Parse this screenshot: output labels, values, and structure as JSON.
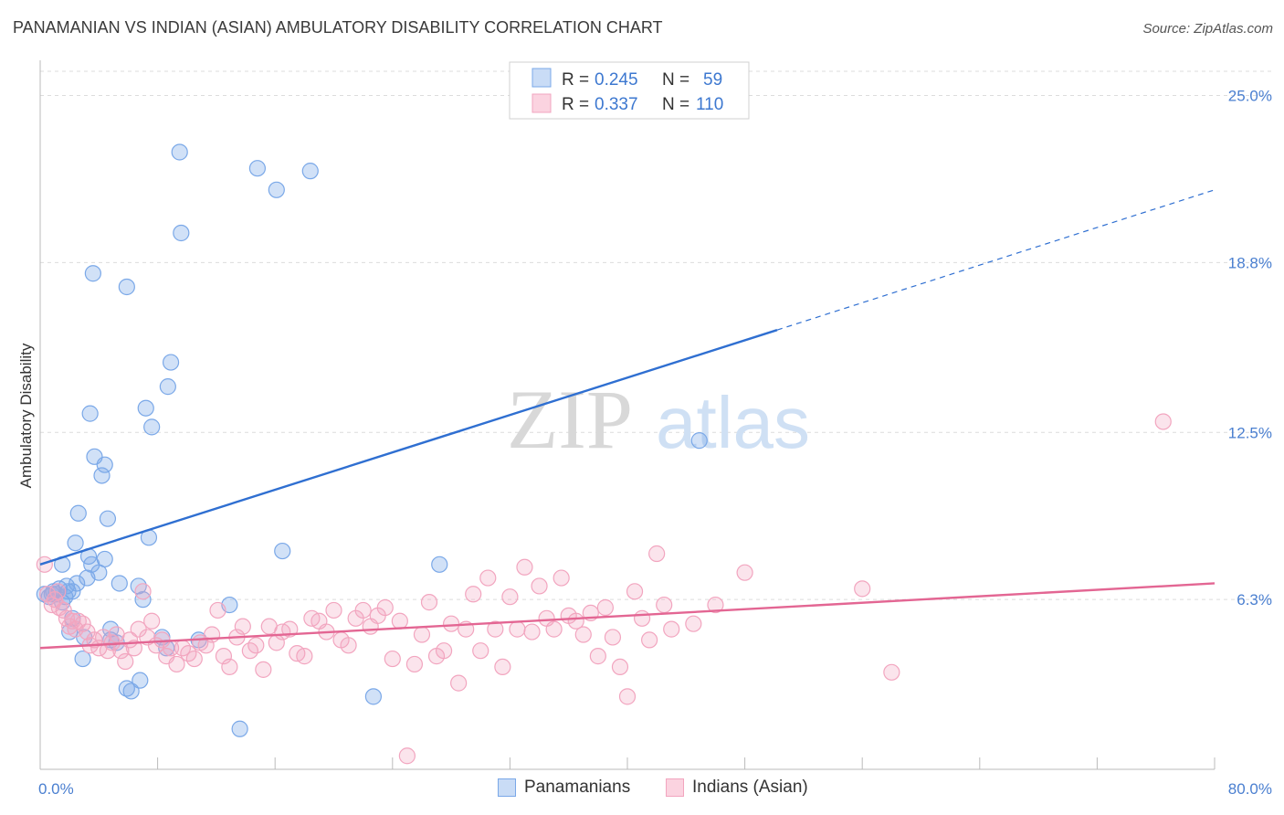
{
  "header": {
    "title": "PANAMANIAN VS INDIAN (ASIAN) AMBULATORY DISABILITY CORRELATION CHART",
    "source": "Source: ZipAtlas.com"
  },
  "watermark": {
    "zip": "ZIP",
    "atlas": "atlas"
  },
  "legend_top": {
    "rows": [
      {
        "r_label": "R = ",
        "r_value": "0.245",
        "n_label": "N = ",
        "n_value": "59"
      },
      {
        "r_label": "R = ",
        "r_value": "0.337",
        "n_label": "N = ",
        "n_value": "110"
      }
    ]
  },
  "legend_bottom": {
    "items": [
      "Panamanians",
      "Indians (Asian)"
    ]
  },
  "chart_data": {
    "type": "scatter",
    "title": "PANAMANIAN VS INDIAN (ASIAN) AMBULATORY DISABILITY CORRELATION CHART",
    "xlabel": "",
    "ylabel": "Ambulatory Disability",
    "xlim": [
      0,
      80
    ],
    "ylim": [
      0,
      25.9
    ],
    "x_tick_labels": [
      "0.0%",
      "80.0%"
    ],
    "y_ticks": [
      6.3,
      12.5,
      18.8,
      25.0
    ],
    "y_tick_labels": [
      "6.3%",
      "12.5%",
      "18.8%",
      "25.0%"
    ],
    "grid": "horizontal dashed",
    "legend_placement": "top-center",
    "colors": {
      "panamanians": "#7aa8e8",
      "panamanians_line": "#2f6fd1",
      "indians": "#f2a5bf",
      "indians_line": "#e36693"
    },
    "series": [
      {
        "name": "Panamanians",
        "r": 0.245,
        "n": 59,
        "trend": {
          "x0": 0,
          "y0": 7.6,
          "x1": 50.2,
          "y1": 16.3,
          "dash_to_x": 80,
          "dash_to_y": 21.5
        },
        "points": [
          [
            0.3,
            6.5
          ],
          [
            0.6,
            6.4
          ],
          [
            0.9,
            6.6
          ],
          [
            1.1,
            6.5
          ],
          [
            1.3,
            6.7
          ],
          [
            1.5,
            6.2
          ],
          [
            1.7,
            6.4
          ],
          [
            1.9,
            6.6
          ],
          [
            1.5,
            7.6
          ],
          [
            1.8,
            6.8
          ],
          [
            2.0,
            5.1
          ],
          [
            2.2,
            5.6
          ],
          [
            2.4,
            8.4
          ],
          [
            2.5,
            6.9
          ],
          [
            2.6,
            9.5
          ],
          [
            2.9,
            4.1
          ],
          [
            3.0,
            4.9
          ],
          [
            3.2,
            7.1
          ],
          [
            3.3,
            7.9
          ],
          [
            3.5,
            7.6
          ],
          [
            3.4,
            13.2
          ],
          [
            3.6,
            18.4
          ],
          [
            3.7,
            11.6
          ],
          [
            4.0,
            7.3
          ],
          [
            4.2,
            10.9
          ],
          [
            4.4,
            11.3
          ],
          [
            4.6,
            9.3
          ],
          [
            4.4,
            7.8
          ],
          [
            4.8,
            4.8
          ],
          [
            5.2,
            4.7
          ],
          [
            5.4,
            6.9
          ],
          [
            5.9,
            3.0
          ],
          [
            6.2,
            2.9
          ],
          [
            6.8,
            3.3
          ],
          [
            6.7,
            6.8
          ],
          [
            7.0,
            6.3
          ],
          [
            7.2,
            13.4
          ],
          [
            7.6,
            12.7
          ],
          [
            5.9,
            17.9
          ],
          [
            7.4,
            8.6
          ],
          [
            8.3,
            4.9
          ],
          [
            8.6,
            4.5
          ],
          [
            8.9,
            15.1
          ],
          [
            8.7,
            14.2
          ],
          [
            9.6,
            19.9
          ],
          [
            9.5,
            22.9
          ],
          [
            10.8,
            4.8
          ],
          [
            12.9,
            6.1
          ],
          [
            13.6,
            1.5
          ],
          [
            14.8,
            22.3
          ],
          [
            16.1,
            21.5
          ],
          [
            16.5,
            8.1
          ],
          [
            18.4,
            22.2
          ],
          [
            22.7,
            2.7
          ],
          [
            27.2,
            7.6
          ],
          [
            44.9,
            12.2
          ],
          [
            0.8,
            6.5
          ],
          [
            2.2,
            6.6
          ],
          [
            4.8,
            5.2
          ]
        ]
      },
      {
        "name": "Indians (Asian)",
        "r": 0.337,
        "n": 110,
        "trend": {
          "x0": 0,
          "y0": 4.5,
          "x1": 80,
          "y1": 6.9
        },
        "points": [
          [
            0.3,
            7.6
          ],
          [
            0.5,
            6.5
          ],
          [
            0.8,
            6.1
          ],
          [
            1.0,
            6.3
          ],
          [
            1.2,
            6.6
          ],
          [
            1.3,
            6.0
          ],
          [
            1.6,
            5.9
          ],
          [
            1.8,
            5.6
          ],
          [
            2.0,
            5.3
          ],
          [
            2.2,
            5.5
          ],
          [
            2.4,
            5.2
          ],
          [
            2.6,
            5.5
          ],
          [
            2.9,
            5.4
          ],
          [
            3.2,
            5.1
          ],
          [
            3.4,
            4.6
          ],
          [
            3.7,
            4.8
          ],
          [
            4.0,
            4.5
          ],
          [
            4.3,
            4.9
          ],
          [
            4.6,
            4.4
          ],
          [
            4.9,
            4.7
          ],
          [
            5.2,
            5.0
          ],
          [
            5.5,
            4.4
          ],
          [
            5.8,
            4.0
          ],
          [
            6.1,
            4.8
          ],
          [
            6.4,
            4.5
          ],
          [
            6.7,
            5.2
          ],
          [
            7.0,
            6.6
          ],
          [
            7.3,
            4.9
          ],
          [
            7.6,
            5.5
          ],
          [
            7.9,
            4.6
          ],
          [
            8.3,
            4.8
          ],
          [
            8.6,
            4.2
          ],
          [
            8.9,
            4.5
          ],
          [
            9.3,
            3.9
          ],
          [
            9.7,
            4.5
          ],
          [
            10.1,
            4.3
          ],
          [
            10.5,
            4.1
          ],
          [
            10.9,
            4.7
          ],
          [
            11.3,
            4.6
          ],
          [
            11.7,
            5.0
          ],
          [
            12.1,
            5.9
          ],
          [
            12.5,
            4.2
          ],
          [
            12.9,
            3.8
          ],
          [
            13.4,
            4.9
          ],
          [
            13.8,
            5.3
          ],
          [
            14.3,
            4.4
          ],
          [
            14.7,
            4.6
          ],
          [
            15.2,
            3.7
          ],
          [
            15.6,
            5.3
          ],
          [
            16.1,
            4.7
          ],
          [
            16.5,
            5.1
          ],
          [
            17.0,
            5.2
          ],
          [
            17.5,
            4.3
          ],
          [
            18.0,
            4.2
          ],
          [
            18.5,
            5.6
          ],
          [
            19.0,
            5.5
          ],
          [
            19.5,
            5.1
          ],
          [
            20.0,
            5.9
          ],
          [
            20.5,
            4.8
          ],
          [
            21.0,
            4.6
          ],
          [
            21.5,
            5.6
          ],
          [
            22.0,
            5.9
          ],
          [
            22.5,
            5.3
          ],
          [
            23.0,
            5.7
          ],
          [
            23.5,
            6.0
          ],
          [
            24.0,
            4.1
          ],
          [
            24.5,
            5.5
          ],
          [
            25.0,
            0.5
          ],
          [
            25.5,
            3.9
          ],
          [
            26.0,
            5.0
          ],
          [
            26.5,
            6.2
          ],
          [
            27.0,
            4.2
          ],
          [
            27.5,
            4.4
          ],
          [
            28.0,
            5.4
          ],
          [
            28.5,
            3.2
          ],
          [
            29.0,
            5.2
          ],
          [
            29.5,
            6.5
          ],
          [
            30.0,
            4.4
          ],
          [
            30.5,
            7.1
          ],
          [
            31.0,
            5.2
          ],
          [
            31.5,
            3.8
          ],
          [
            32.0,
            6.4
          ],
          [
            32.5,
            5.2
          ],
          [
            33.0,
            7.5
          ],
          [
            33.5,
            5.1
          ],
          [
            34.0,
            6.8
          ],
          [
            34.5,
            5.6
          ],
          [
            35.0,
            5.2
          ],
          [
            35.5,
            7.1
          ],
          [
            36.0,
            5.7
          ],
          [
            36.5,
            5.5
          ],
          [
            37.0,
            5.0
          ],
          [
            37.5,
            5.8
          ],
          [
            38.0,
            4.2
          ],
          [
            38.5,
            6.0
          ],
          [
            39.0,
            4.9
          ],
          [
            39.5,
            3.8
          ],
          [
            40.0,
            2.7
          ],
          [
            40.5,
            6.6
          ],
          [
            41.0,
            5.6
          ],
          [
            41.5,
            4.8
          ],
          [
            42.0,
            8.0
          ],
          [
            42.5,
            6.1
          ],
          [
            43.0,
            5.2
          ],
          [
            44.5,
            5.4
          ],
          [
            46.0,
            6.1
          ],
          [
            48.0,
            7.3
          ],
          [
            56.0,
            6.7
          ],
          [
            58.0,
            3.6
          ],
          [
            76.5,
            12.9
          ]
        ]
      }
    ]
  }
}
